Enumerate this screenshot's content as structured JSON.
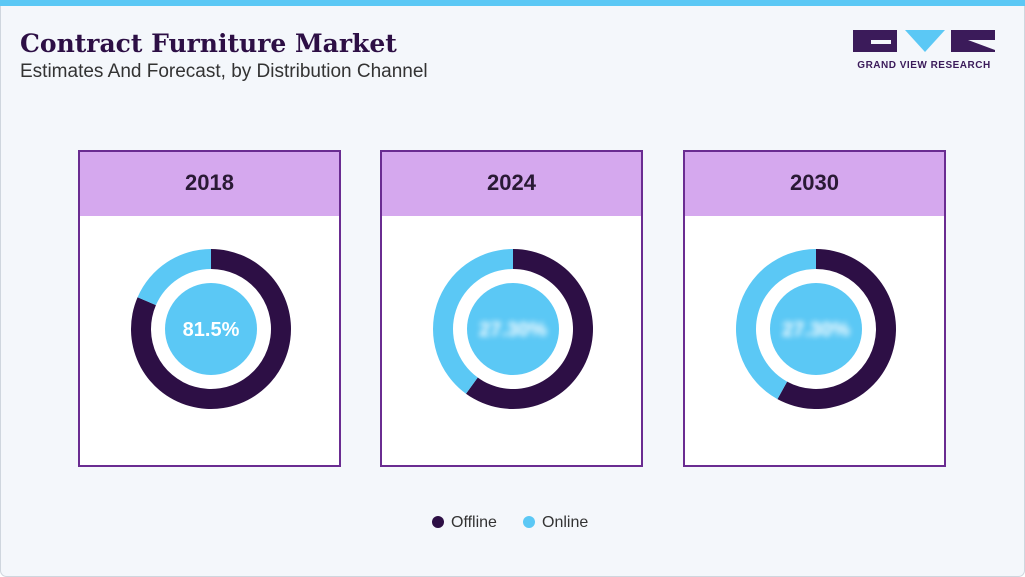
{
  "header": {
    "title": "Contract Furniture Market",
    "subtitle": "Estimates And Forecast, by Distribution Channel"
  },
  "logo": {
    "text": "GRAND VIEW RESEARCH"
  },
  "chart_data": [
    {
      "type": "donut",
      "title": "2018",
      "categories": [
        "Offline",
        "Online"
      ],
      "values": [
        81.5,
        18.5
      ],
      "value_labels": [
        "81.5%",
        null
      ],
      "colors": [
        "#2d0f45",
        "#5bc8f5"
      ]
    },
    {
      "type": "donut",
      "title": "2024",
      "categories": [
        "Offline",
        "Online"
      ],
      "values": [
        60,
        40
      ],
      "center_label": "27.30%",
      "colors": [
        "#2d0f45",
        "#5bc8f5"
      ]
    },
    {
      "type": "donut",
      "title": "2030",
      "categories": [
        "Offline",
        "Online"
      ],
      "values": [
        58,
        42
      ],
      "center_label": "27.30%",
      "colors": [
        "#2d0f45",
        "#5bc8f5"
      ]
    }
  ]
}
